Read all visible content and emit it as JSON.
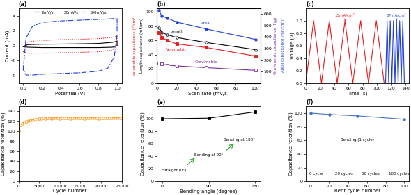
{
  "chart_data": [
    {
      "type": "line",
      "title": "(a)",
      "x_label": "Potential (V)",
      "y_label": "Current (mA)",
      "xlim": [
        -0.05,
        1.05
      ],
      "xticks": [
        {
          "value": 0,
          "label": "0.0"
        },
        0.2,
        0.4,
        0.6,
        0.8,
        {
          "value": 1,
          "label": "1.0"
        }
      ],
      "ylim": [
        -5,
        5
      ],
      "yticks": [
        -4,
        -2,
        0,
        2,
        4
      ],
      "legend": "upper center",
      "series": [
        {
          "name": "2mV/s",
          "color": "#000000",
          "line_style": "solid",
          "x": [
            0,
            0.05,
            0.2,
            0.4,
            0.6,
            0.8,
            0.95,
            1.0,
            1.0,
            0.95,
            0.8,
            0.6,
            0.4,
            0.2,
            0.05,
            0
          ],
          "values": [
            -0.1,
            0.15,
            0.2,
            0.22,
            0.25,
            0.3,
            0.45,
            0.6,
            0.0,
            -0.2,
            -0.25,
            -0.25,
            -0.25,
            -0.25,
            -0.2,
            -0.1
          ]
        },
        {
          "name": "20mV/s",
          "color": "#e41a1c",
          "line_style": "dotted",
          "x": [
            0,
            0.05,
            0.2,
            0.4,
            0.6,
            0.8,
            0.95,
            1.0,
            1.0,
            0.95,
            0.8,
            0.6,
            0.4,
            0.2,
            0.05,
            0
          ],
          "values": [
            -0.8,
            0.5,
            0.7,
            0.8,
            0.85,
            0.95,
            1.1,
            1.3,
            0.2,
            -0.6,
            -0.8,
            -0.9,
            -0.95,
            -1.0,
            -1.0,
            -0.8
          ]
        },
        {
          "name": "100mV/s",
          "color": "#1f3fd6",
          "line_style": "dashdot",
          "x": [
            0,
            0.03,
            0.1,
            0.2,
            0.4,
            0.6,
            0.8,
            0.95,
            1.0,
            1.0,
            0.97,
            0.9,
            0.8,
            0.6,
            0.4,
            0.2,
            0.1,
            0.03,
            0
          ],
          "values": [
            -3.2,
            1.0,
            2.6,
            3.1,
            3.3,
            3.4,
            3.5,
            3.6,
            3.7,
            1.5,
            -1.5,
            -3.0,
            -3.4,
            -3.6,
            -3.7,
            -3.8,
            -3.9,
            -3.9,
            -3.2
          ]
        }
      ]
    },
    {
      "type": "line",
      "title": "(b)",
      "x_label": "Scan rate (mV/s)",
      "y_label": [
        "Volumetric capacitance (F/cm³)",
        "Length capacitance (mF/cm)"
      ],
      "y2_label": [
        "Gravimetric capacitance (F/g)",
        "Areal capacitance (mF/cm²)"
      ],
      "x": [
        2,
        5,
        10,
        20,
        50,
        100
      ],
      "xlim": [
        0,
        105
      ],
      "xticks": [
        0,
        20,
        40,
        60,
        80,
        100
      ],
      "ylim": [
        0,
        105
      ],
      "yticks": [
        0,
        20,
        40,
        60,
        80,
        100
      ],
      "y2lim": [
        0,
        650
      ],
      "y2ticks": [
        100,
        200,
        300,
        400,
        500,
        600
      ],
      "series": [
        {
          "name": "Length",
          "color": "#000000",
          "marker": "open_circle",
          "line_style": "solid",
          "values": [
            78,
            71,
            68,
            64,
            57,
            47
          ]
        },
        {
          "name": "Volumetric",
          "color": "#e41a1c",
          "marker": "square",
          "line_style": "solid",
          "values": [
            71,
            64,
            60,
            55,
            50,
            38
          ]
        },
        {
          "name": "Areal",
          "color": "#1f3fd6",
          "marker": "circle",
          "line_style": "solid",
          "axis": "y2",
          "values": [
            630,
            580,
            565,
            530,
            470,
            380
          ]
        },
        {
          "name": "Gravimetric",
          "color": "#7b2d9e",
          "marker": "open_square",
          "line_style": "solid",
          "axis": "y2",
          "values": [
            175,
            165,
            158,
            150,
            135,
            112
          ]
        }
      ]
    },
    {
      "type": "line",
      "title": "(c)",
      "x_label": "Time (s)",
      "y_label": "Voltage (V)",
      "xlim": [
        0,
        145
      ],
      "xticks": [
        0,
        20,
        40,
        60,
        80,
        100,
        120,
        140
      ],
      "ylim": [
        0,
        1.2
      ],
      "yticks": [
        {
          "value": 0,
          "label": "0.0"
        },
        0.2,
        0.4,
        0.6,
        0.8,
        {
          "value": 1,
          "label": "1.0"
        }
      ],
      "series": [
        {
          "name": "15mA/cm²",
          "color": "#e41a1c",
          "line_style": "solid",
          "x": [
            0,
            11,
            22,
            33,
            44,
            55,
            66,
            77,
            88,
            99,
            110
          ],
          "values": [
            0,
            1,
            0,
            1,
            0,
            1,
            0,
            1,
            0,
            1,
            0
          ]
        },
        {
          "name": "37mA/cm²",
          "color": "#1f3fd6",
          "line_style": "solid",
          "x": [
            112,
            114.2,
            116.4,
            118.6,
            120.8,
            123,
            125.2,
            127.4,
            129.6,
            131.8,
            134,
            136.2,
            138.4
          ],
          "values": [
            0,
            1,
            0,
            1,
            0,
            1,
            0,
            1,
            0,
            1,
            0,
            1,
            0
          ]
        }
      ]
    },
    {
      "type": "line",
      "title": "(d)",
      "x_label": "Cycle number",
      "y_label": "Capacitance retention (%)",
      "xlim": [
        0,
        25000
      ],
      "xticks": [
        0,
        5000,
        10000,
        15000,
        20000,
        25000
      ],
      "ylim": [
        0,
        150
      ],
      "yticks": [
        0,
        20,
        40,
        60,
        80,
        100,
        120,
        140
      ],
      "x": [
        0,
        500,
        1000,
        1500,
        2000,
        2500,
        3000,
        3500,
        4000,
        4500,
        5000,
        5500,
        6000,
        6500,
        7000,
        7500,
        8000,
        8500,
        9000,
        9500,
        10000,
        10500,
        11000,
        11500,
        12000,
        12500,
        13000,
        13500,
        14000,
        14500,
        15000,
        15500,
        16000,
        16500,
        17000,
        17500,
        18000,
        18500,
        19000,
        19500,
        20000,
        20500,
        21000,
        21500,
        22000,
        22500,
        23000,
        23500,
        24000,
        24500,
        25000
      ],
      "series": [
        {
          "color": "#ff8c00",
          "marker": "open_circle",
          "line_style": "solid",
          "values": [
            100,
            112,
            116,
            118,
            120,
            121,
            122,
            123,
            124,
            124,
            125,
            125,
            126,
            125,
            126,
            126,
            125,
            126,
            126,
            126,
            125,
            126,
            126,
            126,
            126,
            125,
            126,
            126,
            126,
            126,
            126,
            126,
            125,
            126,
            126,
            126,
            126,
            126,
            126,
            125,
            126,
            126,
            126,
            126,
            126,
            126,
            126,
            126,
            126,
            126,
            126
          ]
        }
      ]
    },
    {
      "type": "line",
      "title": "(e)",
      "x_label": "Bending angle (degree)",
      "y_label": "Capacitance retention (%)",
      "xlim": [
        -10,
        190
      ],
      "xticks": [
        0,
        90,
        180
      ],
      "ylim": [
        0,
        120
      ],
      "yticks": [
        0,
        20,
        40,
        60,
        80,
        100
      ],
      "x": [
        0,
        90,
        180
      ],
      "annotations": [
        "Straight (0°)",
        "Bending at 90°",
        "Bending at 180°"
      ],
      "series": [
        {
          "color": "#000000",
          "marker": "square",
          "line_style": "solid",
          "values": [
            100,
            101,
            111
          ]
        }
      ]
    },
    {
      "type": "line",
      "title": "(f)",
      "x_label": "Bent cycle number",
      "y_label": "Capacitance retention (%)",
      "xlim": [
        -5,
        105
      ],
      "xticks": [
        0,
        20,
        40,
        60,
        80,
        100
      ],
      "ylim": [
        0,
        110
      ],
      "yticks": [
        0,
        20,
        40,
        60,
        80,
        100
      ],
      "x": [
        0,
        20,
        50,
        100
      ],
      "annotations": [
        "Bending (1 cycle)",
        "0 cycle",
        "20 cycles",
        "50 cycles",
        "100 cycles"
      ],
      "series": [
        {
          "color": "#4472c4",
          "marker": "circle",
          "line_style": "solid",
          "values": [
            100,
            98,
            96,
            91
          ]
        }
      ]
    }
  ]
}
